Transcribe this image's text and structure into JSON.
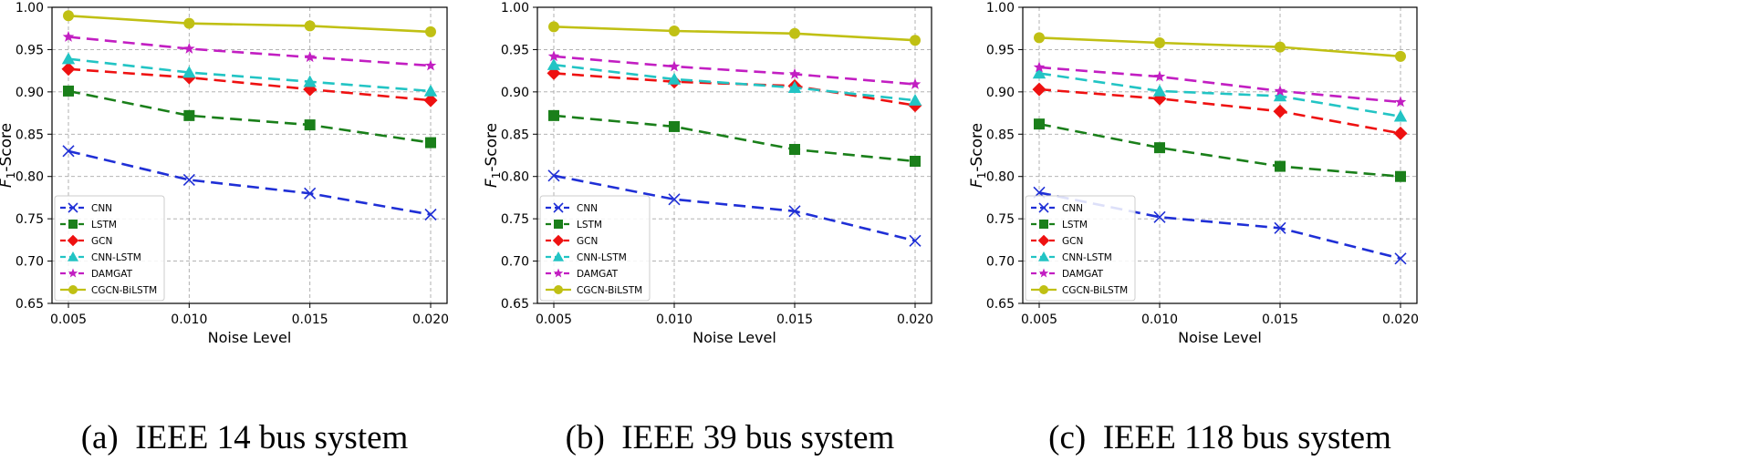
{
  "figure": {
    "panels": [
      {
        "caption": "(a)  IEEE 14 bus system"
      },
      {
        "caption": "(b)  IEEE 39 bus system"
      },
      {
        "caption": "(c)  IEEE 118 bus system"
      }
    ]
  },
  "colors": {
    "CNN": "#1f2fd6",
    "LSTM": "#1a7f1a",
    "GCN": "#ee1111",
    "CNN-LSTM": "#22c4c4",
    "DAMGAT": "#c21ec2",
    "CGCN-BiLSTM": "#c0c014",
    "grid": "#a8a8a8"
  },
  "chart_data": [
    {
      "type": "line",
      "title": "(a)  IEEE 14 bus system",
      "xlabel": "Noise Level",
      "ylabel": "F1-Score",
      "x": [
        0.005,
        0.01,
        0.015,
        0.02
      ],
      "x_ticks": [
        "0.005",
        "0.010",
        "0.015",
        "0.020"
      ],
      "y_ticks": [
        "0.65",
        "0.70",
        "0.75",
        "0.80",
        "0.85",
        "0.90",
        "0.95",
        "1.00"
      ],
      "ylim": [
        0.65,
        1.0
      ],
      "grid": true,
      "legend": "lower-left",
      "series": [
        {
          "name": "CNN",
          "marker": "x",
          "values": [
            0.83,
            0.796,
            0.78,
            0.755
          ]
        },
        {
          "name": "LSTM",
          "marker": "square",
          "values": [
            0.901,
            0.872,
            0.861,
            0.84
          ]
        },
        {
          "name": "GCN",
          "marker": "diamond",
          "values": [
            0.927,
            0.917,
            0.903,
            0.89
          ]
        },
        {
          "name": "CNN-LSTM",
          "marker": "triangle",
          "values": [
            0.939,
            0.923,
            0.912,
            0.901
          ]
        },
        {
          "name": "DAMGAT",
          "marker": "star",
          "values": [
            0.965,
            0.951,
            0.941,
            0.931
          ]
        },
        {
          "name": "CGCN-BiLSTM",
          "marker": "circle",
          "values": [
            0.99,
            0.981,
            0.978,
            0.971
          ]
        }
      ]
    },
    {
      "type": "line",
      "title": "(b)  IEEE 39 bus system",
      "xlabel": "Noise Level",
      "ylabel": "F1-Score",
      "x": [
        0.005,
        0.01,
        0.015,
        0.02
      ],
      "x_ticks": [
        "0.005",
        "0.010",
        "0.015",
        "0.020"
      ],
      "y_ticks": [
        "0.65",
        "0.70",
        "0.75",
        "0.80",
        "0.85",
        "0.90",
        "0.95",
        "1.00"
      ],
      "ylim": [
        0.65,
        1.0
      ],
      "grid": true,
      "legend": "lower-left",
      "series": [
        {
          "name": "CNN",
          "marker": "x",
          "values": [
            0.801,
            0.773,
            0.759,
            0.724
          ]
        },
        {
          "name": "LSTM",
          "marker": "square",
          "values": [
            0.872,
            0.859,
            0.832,
            0.818
          ]
        },
        {
          "name": "GCN",
          "marker": "diamond",
          "values": [
            0.922,
            0.912,
            0.907,
            0.884
          ]
        },
        {
          "name": "CNN-LSTM",
          "marker": "triangle",
          "values": [
            0.932,
            0.915,
            0.905,
            0.89
          ]
        },
        {
          "name": "DAMGAT",
          "marker": "star",
          "values": [
            0.942,
            0.93,
            0.921,
            0.909
          ]
        },
        {
          "name": "CGCN-BiLSTM",
          "marker": "circle",
          "values": [
            0.977,
            0.972,
            0.969,
            0.961
          ]
        }
      ]
    },
    {
      "type": "line",
      "title": "(c)  IEEE 118 bus system",
      "xlabel": "Noise Level",
      "ylabel": "F1-Score",
      "x": [
        0.005,
        0.01,
        0.015,
        0.02
      ],
      "x_ticks": [
        "0.005",
        "0.010",
        "0.015",
        "0.020"
      ],
      "y_ticks": [
        "0.65",
        "0.70",
        "0.75",
        "0.80",
        "0.85",
        "0.90",
        "0.95",
        "1.00"
      ],
      "ylim": [
        0.65,
        1.0
      ],
      "grid": true,
      "legend": "lower-left",
      "series": [
        {
          "name": "CNN",
          "marker": "x",
          "values": [
            0.781,
            0.752,
            0.739,
            0.703
          ]
        },
        {
          "name": "LSTM",
          "marker": "square",
          "values": [
            0.862,
            0.834,
            0.812,
            0.8
          ]
        },
        {
          "name": "GCN",
          "marker": "diamond",
          "values": [
            0.903,
            0.892,
            0.877,
            0.851
          ]
        },
        {
          "name": "CNN-LSTM",
          "marker": "triangle",
          "values": [
            0.922,
            0.901,
            0.895,
            0.871
          ]
        },
        {
          "name": "DAMGAT",
          "marker": "star",
          "values": [
            0.929,
            0.918,
            0.901,
            0.888
          ]
        },
        {
          "name": "CGCN-BiLSTM",
          "marker": "circle",
          "values": [
            0.964,
            0.958,
            0.953,
            0.942
          ]
        }
      ]
    }
  ]
}
